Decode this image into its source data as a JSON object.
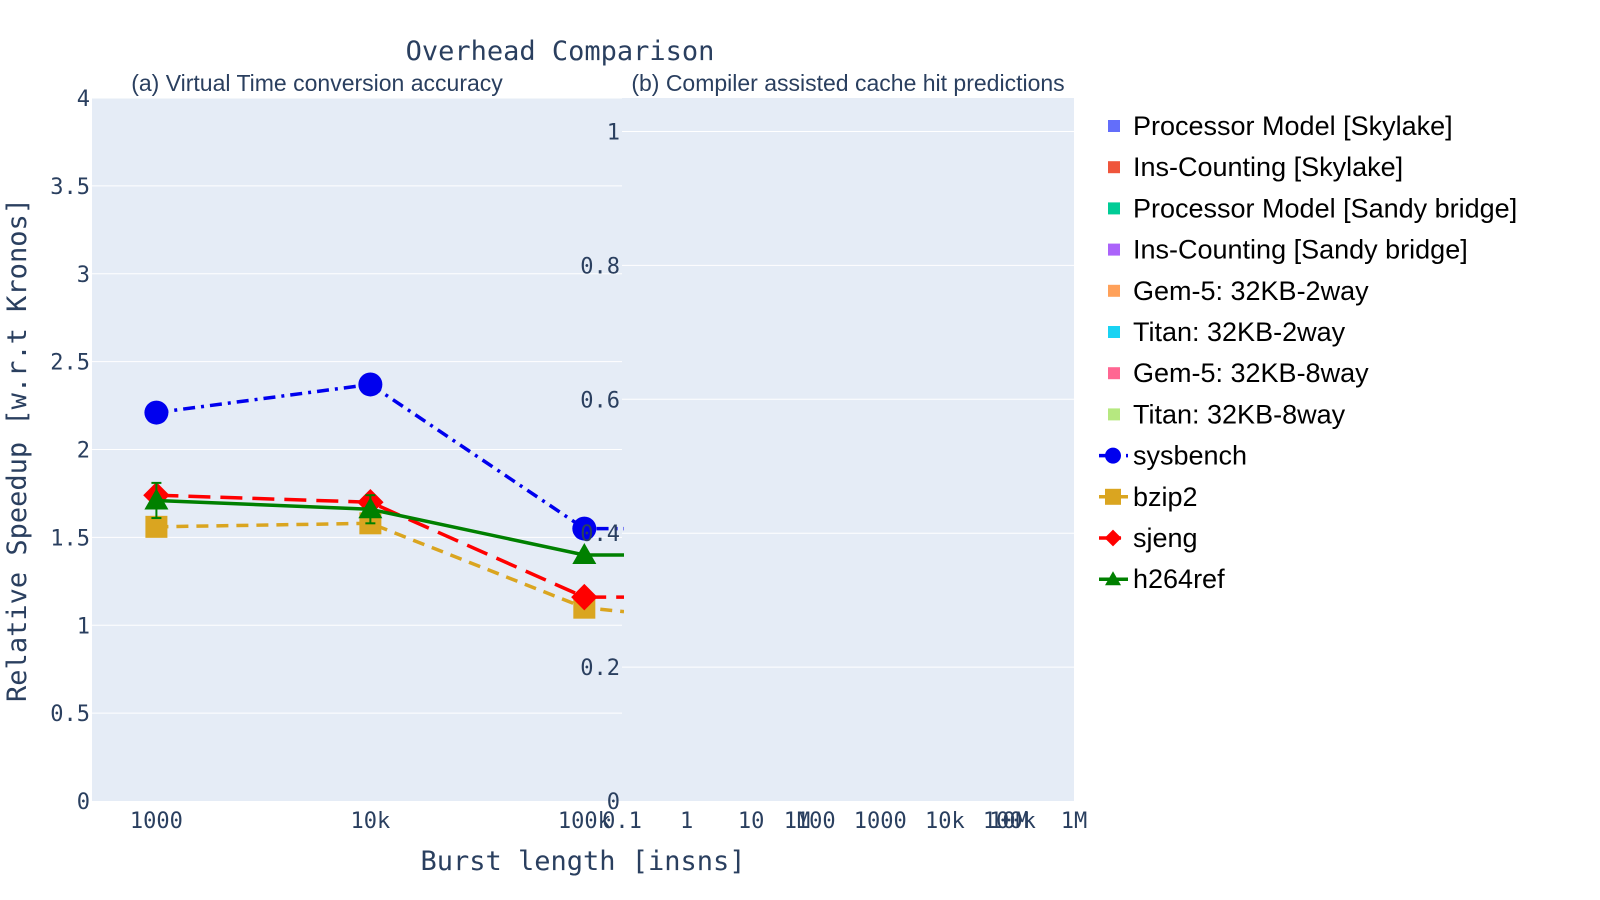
{
  "chart_data": {
    "title": "Overhead Comparison",
    "xlabel": "Burst length [insns]",
    "ylabel": "Relative Speedup [w.r.t Kronos]",
    "legend_placement": "right",
    "grid": true,
    "panels": [
      {
        "type": "line",
        "subtitle": "(a) Virtual Time conversion accuracy",
        "xscale": "log",
        "xlim": [
          500,
          150000
        ],
        "ylim": [
          0,
          4
        ],
        "x_tick_values": [
          1000,
          10000,
          100000
        ],
        "x_tick_labels": [
          "1000",
          "10k",
          "100k"
        ],
        "y_tick_values": [
          0,
          0.5,
          1,
          1.5,
          2,
          2.5,
          3,
          3.5,
          4
        ],
        "y_tick_labels": [
          "0",
          "0.5",
          "1",
          "1.5",
          "2",
          "2.5",
          "3",
          "3.5",
          "4"
        ],
        "x": [
          1000,
          10000,
          100000
        ],
        "series": [
          {
            "name": "sysbench",
            "values": [
              2.21,
              2.37,
              1.55
            ],
            "color": "#0000ee",
            "dash": "dashdot",
            "marker": "circle"
          },
          {
            "name": "bzip2",
            "values": [
              1.56,
              1.58,
              1.1
            ],
            "color": "#daa520",
            "dash": "dash",
            "marker": "square"
          },
          {
            "name": "sjeng",
            "values": [
              1.74,
              1.7,
              1.16
            ],
            "color": "#ff0000",
            "dash": "longdash",
            "marker": "diamond"
          },
          {
            "name": "h264ref",
            "values": [
              1.71,
              1.66,
              1.4
            ],
            "color": "#008000",
            "dash": "solid",
            "marker": "triangle-up",
            "error": [
              0.1,
              0.08,
              0
            ]
          }
        ]
      },
      {
        "type": "bar",
        "subtitle": "(b) Compiler assisted cache hit predictions",
        "xscale": "log",
        "ylim": [
          0,
          1.05
        ],
        "y_tick_values": [
          0,
          0.2,
          0.4,
          0.6,
          0.8,
          1
        ],
        "y_tick_labels": [
          "0",
          "0.2",
          "0.4",
          "0.6",
          "0.8",
          "1"
        ],
        "x_tick_labels_group1": [
          "0.1",
          "1",
          "10",
          "100",
          "1000",
          "10k",
          "100k",
          "1M"
        ],
        "x_tick_labels_group2": [
          "1M",
          "10M"
        ],
        "series": [
          {
            "name": "Processor Model [Skylake]",
            "color": "#636efa",
            "values": []
          },
          {
            "name": "Ins-Counting [Skylake]",
            "color": "#ef553b",
            "values": []
          },
          {
            "name": "Processor Model [Sandy bridge]",
            "color": "#00cc96",
            "values": []
          },
          {
            "name": "Ins-Counting [Sandy bridge]",
            "color": "#ab63fa",
            "values": []
          },
          {
            "name": "Gem-5: 32KB-2way",
            "color": "#ffa15a",
            "values": []
          },
          {
            "name": "Titan: 32KB-2way",
            "color": "#19d3f3",
            "values": []
          },
          {
            "name": "Gem-5: 32KB-8way",
            "color": "#ff6692",
            "values": []
          },
          {
            "name": "Titan: 32KB-8way",
            "color": "#b6e880",
            "values": []
          }
        ]
      }
    ]
  },
  "legend": {
    "items": [
      {
        "label": "Processor Model [Skylake]",
        "kind": "bar",
        "color": "#636efa"
      },
      {
        "label": "Ins-Counting [Skylake]",
        "kind": "bar",
        "color": "#ef553b"
      },
      {
        "label": "Processor Model [Sandy bridge]",
        "kind": "bar",
        "color": "#00cc96"
      },
      {
        "label": "Ins-Counting [Sandy bridge]",
        "kind": "bar",
        "color": "#ab63fa"
      },
      {
        "label": "Gem-5: 32KB-2way",
        "kind": "bar",
        "color": "#ffa15a"
      },
      {
        "label": "Titan: 32KB-2way",
        "kind": "bar",
        "color": "#19d3f3"
      },
      {
        "label": "Gem-5: 32KB-8way",
        "kind": "bar",
        "color": "#ff6692"
      },
      {
        "label": "Titan: 32KB-8way",
        "kind": "bar",
        "color": "#b6e880"
      },
      {
        "label": "sysbench",
        "kind": "line",
        "color": "#0000ee",
        "marker": "circle",
        "dash": "dashdot"
      },
      {
        "label": "bzip2",
        "kind": "line",
        "color": "#daa520",
        "marker": "square",
        "dash": "dash"
      },
      {
        "label": "sjeng",
        "kind": "line",
        "color": "#ff0000",
        "marker": "diamond",
        "dash": "longdash"
      },
      {
        "label": "h264ref",
        "kind": "line",
        "color": "#008000",
        "marker": "triangle-up",
        "dash": "solid"
      }
    ]
  },
  "colors": {
    "plot_background": "#e5ecf6",
    "grid": "#ffffff",
    "text": "#2a3f5f"
  }
}
